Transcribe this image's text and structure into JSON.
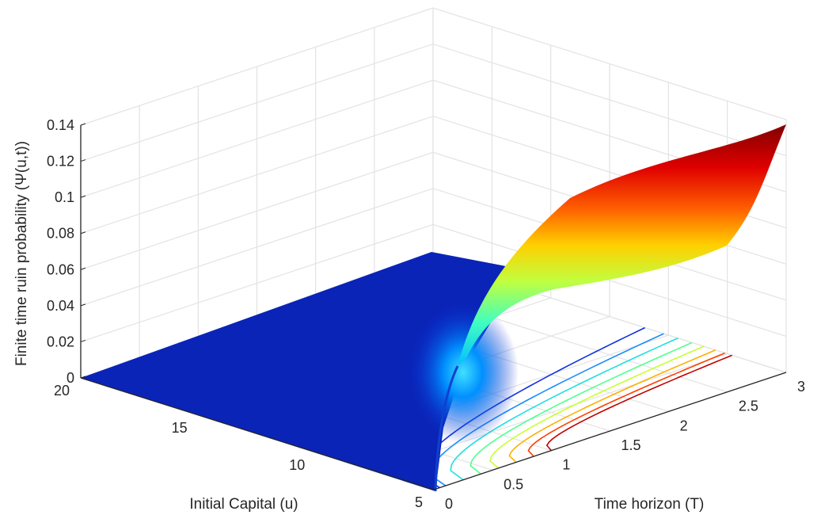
{
  "chart_data": {
    "type": "surface",
    "view": "3d-surface-with-contours-on-floor",
    "x_axis": {
      "label": "Initial Capital (u)",
      "ticks": [
        "5",
        "10",
        "15",
        "20"
      ],
      "range": [
        5,
        20
      ]
    },
    "y_axis": {
      "label": "Time horizon (T)",
      "ticks": [
        "0",
        "0.5",
        "1",
        "1.5",
        "2",
        "2.5",
        "3"
      ],
      "range": [
        0,
        3
      ]
    },
    "z_axis": {
      "label": "Finite time ruin probability (Ψ(u,t))",
      "ticks": [
        "0",
        "0.02",
        "0.04",
        "0.06",
        "0.08",
        "0.1",
        "0.12",
        "0.14"
      ],
      "range": [
        0,
        0.14
      ]
    },
    "surface_samples": [
      {
        "u": 5,
        "T": 0.5,
        "psi": 0.03
      },
      {
        "u": 5,
        "T": 1,
        "psi": 0.07
      },
      {
        "u": 5,
        "T": 1.5,
        "psi": 0.09
      },
      {
        "u": 5,
        "T": 2,
        "psi": 0.105
      },
      {
        "u": 5,
        "T": 2.5,
        "psi": 0.12
      },
      {
        "u": 5,
        "T": 3,
        "psi": 0.14
      },
      {
        "u": 6,
        "T": 3,
        "psi": 0.1
      },
      {
        "u": 7,
        "T": 3,
        "psi": 0.06
      },
      {
        "u": 10,
        "T": 3,
        "psi": 0.0
      },
      {
        "u": 20,
        "T": 3,
        "psi": 0.0
      }
    ],
    "colormap": "jet",
    "grid": true
  }
}
